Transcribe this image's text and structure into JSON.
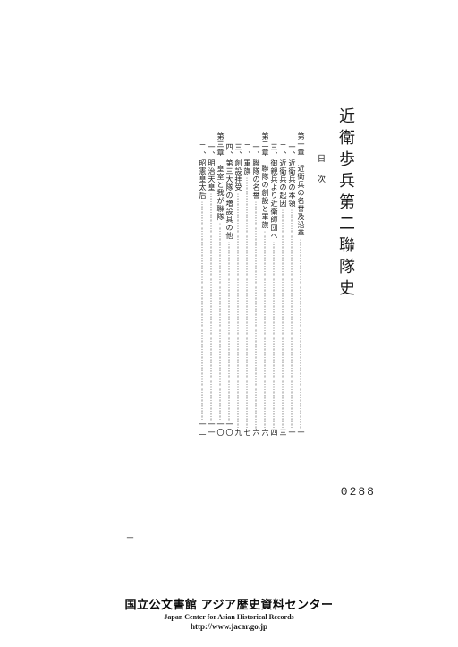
{
  "document": {
    "title": "近衛歩兵第二聯隊史",
    "mokuji_label": "目次",
    "page_top_marker": "一",
    "stamp_number": "0288"
  },
  "toc": [
    {
      "label": "第一章　近衛兵の名譽及沿革",
      "page": "一",
      "indent": false
    },
    {
      "label": "一、近衛兵の本領",
      "page": "一",
      "indent": true
    },
    {
      "label": "二、近衛兵の起因",
      "page": "三",
      "indent": true
    },
    {
      "label": "三、御親兵より近衛師団へ",
      "page": "四",
      "indent": true
    },
    {
      "label": "第二章　聯隊の創設と軍旗",
      "page": "六",
      "indent": false
    },
    {
      "label": "一、聯隊の名譽",
      "page": "六",
      "indent": true
    },
    {
      "label": "二、軍旗",
      "page": "七",
      "indent": true
    },
    {
      "label": "三、創設拝受",
      "page": "九",
      "indent": true
    },
    {
      "label": "四、第三大隊の増設其の他",
      "page": "一〇",
      "indent": true
    },
    {
      "label": "第三章　皇室と我が聯隊",
      "page": "一〇",
      "indent": false
    },
    {
      "label": "一、明治天皇",
      "page": "一一",
      "indent": true
    },
    {
      "label": "二、昭憲皇太后",
      "page": "一二",
      "indent": true
    }
  ],
  "footer": {
    "main_jp": "国立公文書館 アジア歴史資料センター",
    "main_en": "Japan Center for Asian Historical Records",
    "url": "http://www.jacar.go.jp"
  },
  "style": {
    "text_color": "#1a1a1a",
    "background_color": "#ffffff",
    "title_fontsize": 18,
    "toc_fontsize": 8,
    "footer_main_fontsize": 13,
    "footer_sub_fontsize": 8
  }
}
